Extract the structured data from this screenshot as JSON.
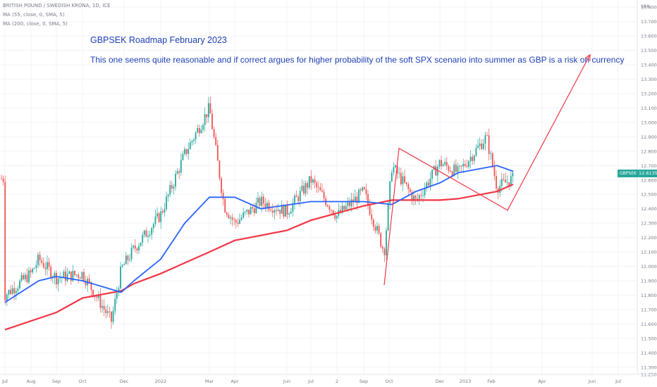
{
  "header": {
    "title": "BRITISH POUND / SWEDISH KRONA, 1D, ICE",
    "ma55": "MA (55, close, 0, SMA, 5)",
    "ma200": "MA (200, close, 0, SMA, 5)"
  },
  "annotation": {
    "title": "GBPSEK Roadmap February 2023",
    "body": "This one seems quite reasonable and if correct argues for higher probability of the soft SPX scenario into summer as GBP is a risk on currency"
  },
  "price_axis": {
    "currency": "SEK",
    "ticks": [
      "13.8000",
      "13.7000",
      "13.6000",
      "13.5000",
      "13.4000",
      "13.3000",
      "13.2000",
      "13.1000",
      "13.0000",
      "12.9000",
      "12.8000",
      "12.7000",
      "12.6000",
      "12.5000",
      "12.4000",
      "12.3000",
      "12.2000",
      "12.1000",
      "12.0000",
      "11.9000",
      "11.8000",
      "11.7000",
      "11.6000",
      "11.5000",
      "11.4000",
      "11.3000",
      "11.2500"
    ],
    "symbol_tag": "GBPSEK",
    "last_price": "12.6135"
  },
  "colors": {
    "up": "#26a69a",
    "down": "#ef5350",
    "ma55": "#2962ff",
    "ma200": "#f23645",
    "drawing": "#f23645",
    "text_blue": "#1e3fb4",
    "grid": "#f0f3fa"
  },
  "chart_data": {
    "type": "candlestick",
    "symbol": "GBPSEK",
    "interval": "1D",
    "ylim": [
      11.25,
      13.85
    ],
    "x_tick_labels": [
      "Jul",
      "Aug",
      "Sep",
      "Oct",
      "Dec",
      "2022",
      "Mar",
      "Apr",
      "Jun",
      "Jul",
      "2",
      "Sep",
      "Oct",
      "Dec",
      "2023",
      "Feb",
      "Apr",
      "Jun",
      "Jul"
    ],
    "last_price": 12.6135,
    "price_path": [
      {
        "time": "Jul",
        "price": 11.8
      },
      {
        "time": "Aug",
        "price": 11.95
      },
      {
        "time": "Aug-mid",
        "price": 12.05
      },
      {
        "time": "Sep",
        "price": 11.92
      },
      {
        "time": "Oct",
        "price": 11.95
      },
      {
        "time": "Oct-end",
        "price": 11.62
      },
      {
        "time": "Nov-mid",
        "price": 11.98
      },
      {
        "time": "Dec",
        "price": 12.12
      },
      {
        "time": "2022",
        "price": 12.36
      },
      {
        "time": "Feb",
        "price": 12.78
      },
      {
        "time": "Mar",
        "price": 13.1
      },
      {
        "time": "Mar-mid",
        "price": 12.42
      },
      {
        "time": "Apr",
        "price": 12.3
      },
      {
        "time": "May",
        "price": 12.45
      },
      {
        "time": "Jun",
        "price": 12.38
      },
      {
        "time": "Jul",
        "price": 12.6
      },
      {
        "time": "Aug",
        "price": 12.35
      },
      {
        "time": "Sep",
        "price": 12.52
      },
      {
        "time": "Sep-end",
        "price": 12.1
      },
      {
        "time": "Oct",
        "price": 12.7
      },
      {
        "time": "Nov",
        "price": 12.45
      },
      {
        "time": "Dec",
        "price": 12.72
      },
      {
        "time": "2023",
        "price": 12.65
      },
      {
        "time": "Jan-end",
        "price": 12.9
      },
      {
        "time": "Feb",
        "price": 12.55
      },
      {
        "time": "Feb-mid",
        "price": 12.61
      }
    ],
    "series": [
      {
        "name": "MA (55, close, 0, SMA, 5)",
        "points": [
          {
            "time": "Jul",
            "price": 11.75
          },
          {
            "time": "Aug-mid",
            "price": 11.9
          },
          {
            "time": "Sep",
            "price": 11.93
          },
          {
            "time": "Oct",
            "price": 11.9
          },
          {
            "time": "Nov-mid",
            "price": 11.82
          },
          {
            "time": "Dec",
            "price": 11.9
          },
          {
            "time": "2022",
            "price": 12.05
          },
          {
            "time": "Feb",
            "price": 12.3
          },
          {
            "time": "Mar",
            "price": 12.48
          },
          {
            "time": "Apr",
            "price": 12.48
          },
          {
            "time": "May",
            "price": 12.4
          },
          {
            "time": "Jul",
            "price": 12.45
          },
          {
            "time": "Sep",
            "price": 12.45
          },
          {
            "time": "Oct",
            "price": 12.43
          },
          {
            "time": "Nov",
            "price": 12.52
          },
          {
            "time": "Dec",
            "price": 12.58
          },
          {
            "time": "2023",
            "price": 12.65
          },
          {
            "time": "Feb",
            "price": 12.7
          },
          {
            "time": "Feb-mid",
            "price": 12.66
          }
        ]
      },
      {
        "name": "MA (200, close, 0, SMA, 5)",
        "points": [
          {
            "time": "Jul",
            "price": 11.56
          },
          {
            "time": "Sep",
            "price": 11.68
          },
          {
            "time": "Oct",
            "price": 11.78
          },
          {
            "time": "Nov-mid",
            "price": 11.83
          },
          {
            "time": "Dec",
            "price": 11.88
          },
          {
            "time": "2022",
            "price": 11.95
          },
          {
            "time": "Mar",
            "price": 12.1
          },
          {
            "time": "Apr",
            "price": 12.18
          },
          {
            "time": "Jun",
            "price": 12.25
          },
          {
            "time": "Jul",
            "price": 12.32
          },
          {
            "time": "Sep",
            "price": 12.42
          },
          {
            "time": "Oct",
            "price": 12.46
          },
          {
            "time": "Dec",
            "price": 12.46
          },
          {
            "time": "2023",
            "price": 12.47
          },
          {
            "time": "Feb",
            "price": 12.52
          },
          {
            "time": "Feb-mid",
            "price": 12.57
          }
        ]
      }
    ],
    "drawing_points": [
      {
        "time": "Sep-end",
        "price": 11.87
      },
      {
        "time": "Oct",
        "price": 12.82
      },
      {
        "time": "Feb-mid",
        "price": 12.39
      },
      {
        "time": "Jun",
        "price": 13.47
      }
    ]
  }
}
